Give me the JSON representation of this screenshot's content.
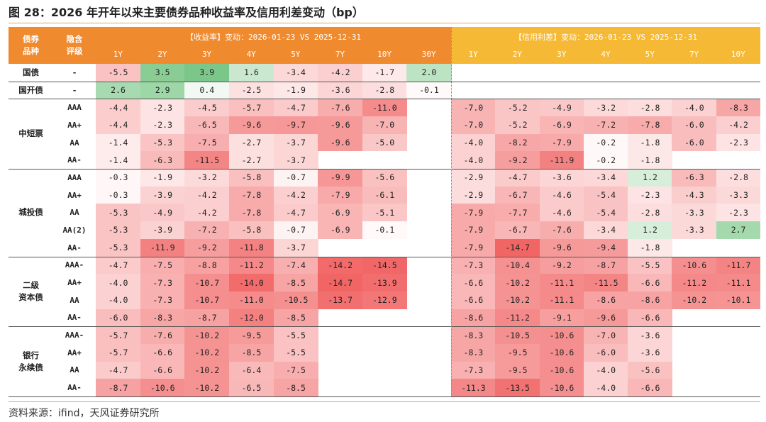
{
  "title": "图 28：2026 年开年以来主要债券品种收益率及信用利差变动（bp）",
  "table": {
    "header": {
      "type_label": [
        "债券",
        "品种"
      ],
      "rating_label": [
        "隐含",
        "评级"
      ],
      "yield_title": "【收益率】变动：2026-01-23 VS 2025-12-31",
      "yield_tenors": [
        "1Y",
        "2Y",
        "3Y",
        "4Y",
        "5Y",
        "7Y",
        "10Y",
        "30Y"
      ],
      "spread_title": "【信用利差】变动：2026-01-23 VS 2025-12-31",
      "spread_tenors": [
        "1Y",
        "2Y",
        "3Y",
        "4Y",
        "5Y",
        "7Y",
        "10Y"
      ]
    },
    "groups": [
      {
        "name": [
          "国债"
        ],
        "rows": [
          {
            "rating": "-",
            "yield": [
              "-5.5",
              "3.5",
              "3.9",
              "1.6",
              "-3.4",
              "-4.2",
              "-1.7",
              "2.0"
            ],
            "spread": []
          }
        ]
      },
      {
        "name": [
          "国开债"
        ],
        "rows": [
          {
            "rating": "-",
            "yield": [
              "2.6",
              "2.9",
              "0.4",
              "-2.5",
              "-1.9",
              "-3.6",
              "-2.8",
              "-0.1"
            ],
            "spread": []
          }
        ]
      },
      {
        "name": [
          "中短票"
        ],
        "rows": [
          {
            "rating": "AAA",
            "yield": [
              "-4.4",
              "-2.3",
              "-4.5",
              "-5.7",
              "-4.7",
              "-7.6",
              "-11.0"
            ],
            "spread": [
              "-7.0",
              "-5.2",
              "-4.9",
              "-3.2",
              "-2.8",
              "-4.0",
              "-8.3"
            ]
          },
          {
            "rating": "AA+",
            "yield": [
              "-4.4",
              "-2.3",
              "-6.5",
              "-9.6",
              "-9.7",
              "-9.6",
              "-7.0"
            ],
            "spread": [
              "-7.0",
              "-5.2",
              "-6.9",
              "-7.2",
              "-7.8",
              "-6.0",
              "-4.2"
            ]
          },
          {
            "rating": "AA",
            "yield": [
              "-1.4",
              "-5.3",
              "-7.5",
              "-2.7",
              "-3.7",
              "-9.6",
              "-5.0"
            ],
            "spread": [
              "-4.0",
              "-8.2",
              "-7.9",
              "-0.2",
              "-1.8",
              "-6.0",
              "-2.3"
            ]
          },
          {
            "rating": "AA-",
            "yield": [
              "-1.4",
              "-6.3",
              "-11.5",
              "-2.7",
              "-3.7"
            ],
            "spread": [
              "-4.0",
              "-9.2",
              "-11.9",
              "-0.2",
              "-1.8"
            ]
          }
        ]
      },
      {
        "name": [
          "城投债"
        ],
        "rows": [
          {
            "rating": "AAA",
            "yield": [
              "-0.3",
              "-1.9",
              "-3.2",
              "-5.8",
              "-0.7",
              "-9.9",
              "-5.6"
            ],
            "spread": [
              "-2.9",
              "-4.7",
              "-3.6",
              "-3.4",
              "1.2",
              "-6.3",
              "-2.8"
            ]
          },
          {
            "rating": "AA+",
            "yield": [
              "-0.3",
              "-3.9",
              "-4.2",
              "-7.8",
              "-4.2",
              "-7.9",
              "-6.1"
            ],
            "spread": [
              "-2.9",
              "-6.7",
              "-4.6",
              "-5.4",
              "-2.3",
              "-4.3",
              "-3.3"
            ]
          },
          {
            "rating": "AA",
            "yield": [
              "-5.3",
              "-4.9",
              "-4.2",
              "-7.8",
              "-4.7",
              "-6.9",
              "-5.1"
            ],
            "spread": [
              "-7.9",
              "-7.7",
              "-4.6",
              "-5.4",
              "-2.8",
              "-3.3",
              "-2.3"
            ]
          },
          {
            "rating": "AA(2)",
            "yield": [
              "-5.3",
              "-3.9",
              "-7.2",
              "-5.8",
              "-0.7",
              "-6.9",
              "-0.1"
            ],
            "spread": [
              "-7.9",
              "-6.7",
              "-7.6",
              "-3.4",
              "1.2",
              "-3.3",
              "2.7"
            ]
          },
          {
            "rating": "AA-",
            "yield": [
              "-5.3",
              "-11.9",
              "-9.2",
              "-11.8",
              "-3.7"
            ],
            "spread": [
              "-7.9",
              "-14.7",
              "-9.6",
              "-9.4",
              "-1.8"
            ]
          }
        ]
      },
      {
        "name": [
          "二级",
          "资本债"
        ],
        "rows": [
          {
            "rating": "AAA-",
            "yield": [
              "-4.7",
              "-7.5",
              "-8.8",
              "-11.2",
              "-7.4",
              "-14.2",
              "-14.5"
            ],
            "spread": [
              "-7.3",
              "-10.4",
              "-9.2",
              "-8.7",
              "-5.5",
              "-10.6",
              "-11.7"
            ]
          },
          {
            "rating": "AA+",
            "yield": [
              "-4.0",
              "-7.3",
              "-10.7",
              "-14.0",
              "-8.5",
              "-14.7",
              "-13.9"
            ],
            "spread": [
              "-6.6",
              "-10.2",
              "-11.1",
              "-11.5",
              "-6.6",
              "-11.2",
              "-11.1"
            ]
          },
          {
            "rating": "AA",
            "yield": [
              "-4.0",
              "-7.3",
              "-10.7",
              "-11.0",
              "-10.5",
              "-13.7",
              "-12.9"
            ],
            "spread": [
              "-6.6",
              "-10.2",
              "-11.1",
              "-8.6",
              "-8.6",
              "-10.2",
              "-10.1"
            ]
          },
          {
            "rating": "AA-",
            "yield": [
              "-6.0",
              "-8.3",
              "-8.7",
              "-12.0",
              "-8.5"
            ],
            "spread": [
              "-8.6",
              "-11.2",
              "-9.1",
              "-9.6",
              "-6.6"
            ]
          }
        ]
      },
      {
        "name": [
          "银行",
          "永续债"
        ],
        "rows": [
          {
            "rating": "AAA-",
            "yield": [
              "-5.7",
              "-7.6",
              "-10.2",
              "-9.5",
              "-5.5"
            ],
            "spread": [
              "-8.3",
              "-10.5",
              "-10.6",
              "-7.0",
              "-3.6"
            ]
          },
          {
            "rating": "AA+",
            "yield": [
              "-5.7",
              "-6.6",
              "-10.2",
              "-8.5",
              "-5.5"
            ],
            "spread": [
              "-8.3",
              "-9.5",
              "-10.6",
              "-6.0",
              "-3.6"
            ]
          },
          {
            "rating": "AA",
            "yield": [
              "-4.7",
              "-6.6",
              "-10.2",
              "-6.4",
              "-7.5"
            ],
            "spread": [
              "-7.3",
              "-9.5",
              "-10.6",
              "-4.0",
              "-5.6"
            ]
          },
          {
            "rating": "AA-",
            "yield": [
              "-8.7",
              "-10.6",
              "-10.2",
              "-6.5",
              "-8.5"
            ],
            "spread": [
              "-11.3",
              "-13.5",
              "-10.6",
              "-4.0",
              "-6.6"
            ]
          }
        ]
      }
    ]
  },
  "footer": "资料来源：ifind，天风证券研究所"
}
